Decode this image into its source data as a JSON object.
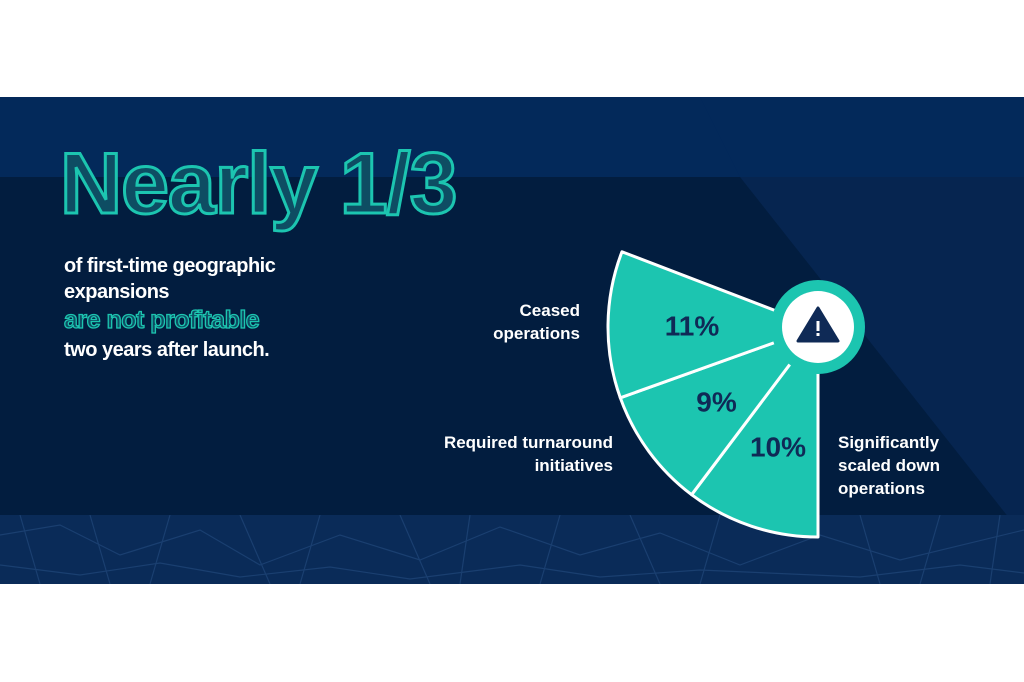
{
  "headline": "Nearly 1/3",
  "subtext": {
    "line1": "of first-time geographic",
    "line2": "expansions",
    "highlight": "are not profitable",
    "line4": "two years after launch."
  },
  "colors": {
    "background": "#021d3f",
    "accent": "#1cc5b0",
    "text": "#ffffff",
    "value_text": "#0f2a56"
  },
  "center_icon": "warning-triangle-icon",
  "chart_data": {
    "type": "pie",
    "variant": "partial fan",
    "slices": [
      {
        "label": "Ceased operations",
        "value": 11,
        "display": "11%"
      },
      {
        "label": "Required turnaround initiatives",
        "value": 9,
        "display": "9%"
      },
      {
        "label": "Significantly scaled down operations",
        "value": 10,
        "display": "10%"
      }
    ],
    "unit": "%"
  }
}
